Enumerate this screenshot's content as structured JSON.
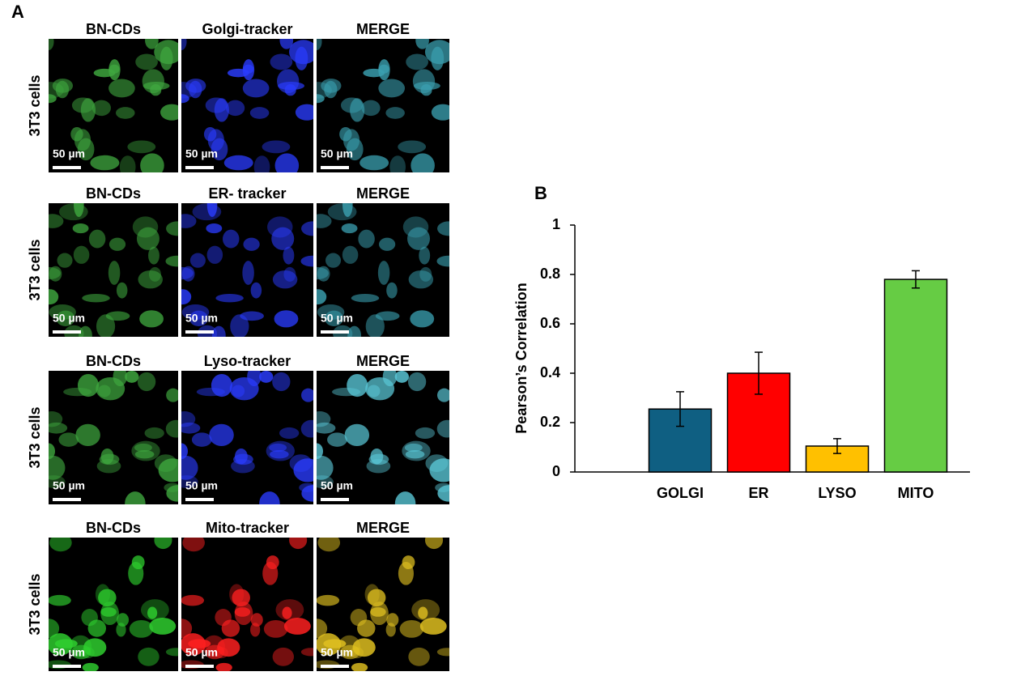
{
  "panel_a": {
    "label": "A",
    "rows": [
      {
        "row_label": "3T3 cells",
        "columns": [
          "BN-CDs",
          "Golgi-tracker",
          "MERGE"
        ],
        "scale_bar": "50 µm"
      },
      {
        "row_label": "3T3 cells",
        "columns": [
          "BN-CDs",
          "ER- tracker",
          "MERGE"
        ],
        "scale_bar": "50 µm"
      },
      {
        "row_label": "3T3 cells",
        "columns": [
          "BN-CDs",
          "Lyso-tracker",
          "MERGE"
        ],
        "scale_bar": "50 µm"
      },
      {
        "row_label": "3T3 cells",
        "columns": [
          "BN-CDs",
          "Mito-tracker",
          "MERGE"
        ],
        "scale_bar": "50 µm"
      }
    ]
  },
  "chart_data": {
    "type": "bar",
    "panel_label": "B",
    "y_label": "Pearson’s Correlation",
    "categories": [
      "GOLGI",
      "ER",
      "LYSO",
      "MITO"
    ],
    "values": [
      0.255,
      0.4,
      0.105,
      0.78
    ],
    "errors": [
      0.07,
      0.085,
      0.03,
      0.035
    ],
    "colors": [
      "#0f5f82",
      "#ff0000",
      "#ffc000",
      "#66cc44"
    ],
    "ylim": [
      0,
      1
    ],
    "yticks": [
      0,
      0.2,
      0.4,
      0.6,
      0.8,
      1
    ],
    "grid": false
  }
}
